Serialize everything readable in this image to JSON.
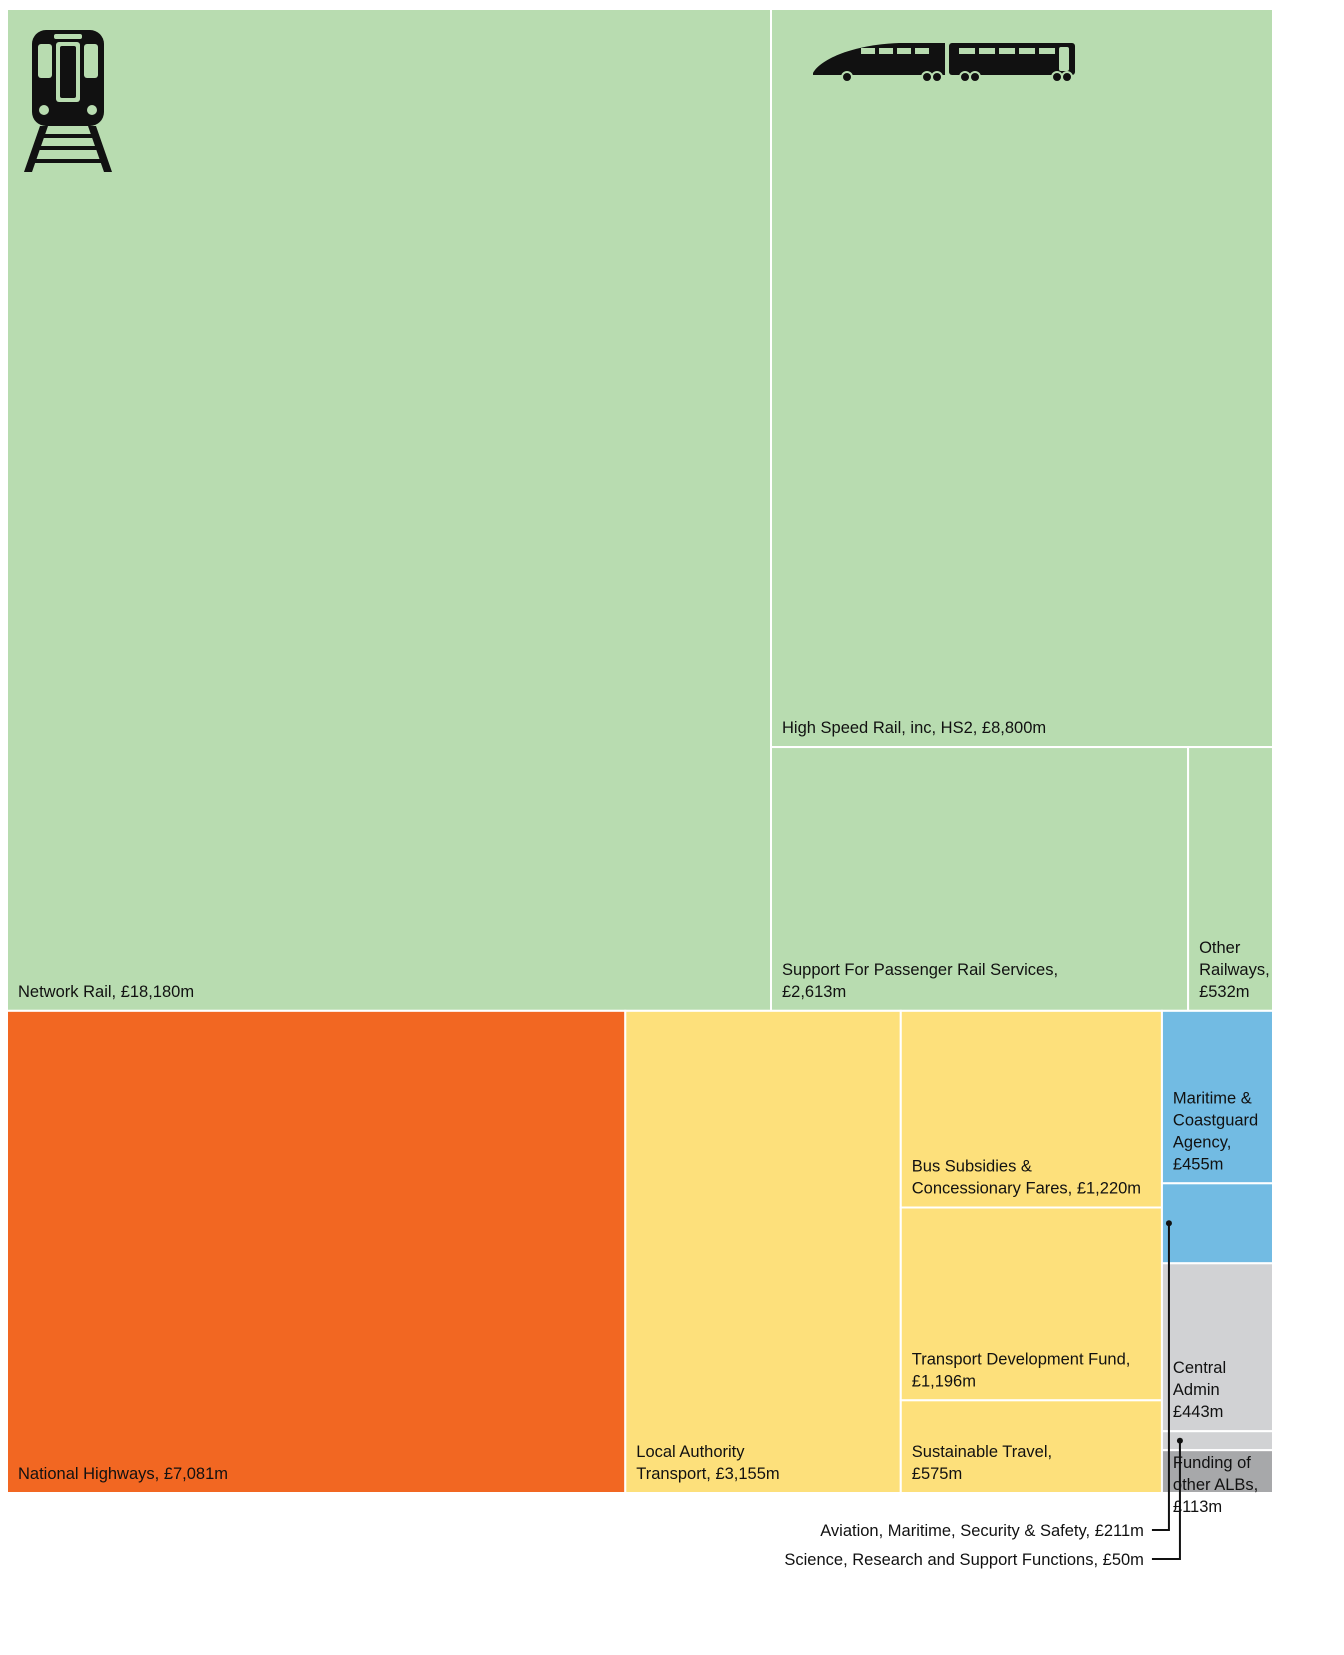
{
  "chart_data": {
    "type": "treemap",
    "labels": [
      [
        "Network Rail, £18,180m"
      ],
      [
        "High Speed Rail, inc, HS2, £8,800m"
      ],
      [
        "Support For Passenger Rail Services,",
        "£2,613m"
      ],
      [
        "Other",
        "Railways,",
        "£532m"
      ],
      [
        "National Highways, £7,081m"
      ],
      [
        "Local Authority",
        "Transport, £3,155m"
      ],
      [
        "Bus Subsidies &",
        "Concessionary Fares, £1,220m"
      ],
      [
        "Transport Development Fund,",
        "£1,196m"
      ],
      [
        "Sustainable Travel,",
        "£575m"
      ],
      [
        "Maritime &",
        "Coastguard",
        "Agency,",
        "£455m"
      ],
      [
        "Aviation, Maritime, Security & Safety, £211m"
      ],
      [
        "Central",
        "Admin",
        "£443m"
      ],
      [
        "Science, Research and Support Functions, £50m"
      ],
      [
        "Funding of",
        "other ALBs,",
        "£113m"
      ]
    ],
    "values": [
      18180,
      8800,
      2613,
      532,
      7081,
      3155,
      1220,
      1196,
      575,
      455,
      211,
      443,
      50,
      113
    ],
    "colors": [
      "#b8dcb0",
      "#b8dcb0",
      "#b8dcb0",
      "#b8dcb0",
      "#f26722",
      "#fde07b",
      "#fde07b",
      "#fde07b",
      "#fde07b",
      "#72bbe3",
      "#72bbe3",
      "#d1d2d4",
      "#d1d2d4",
      "#a7a8aa"
    ]
  }
}
